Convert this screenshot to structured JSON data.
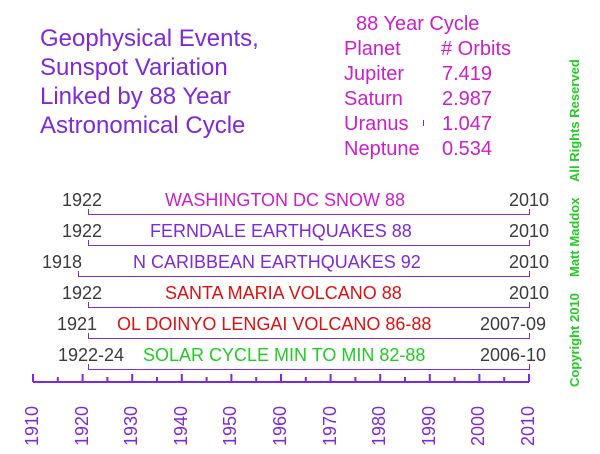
{
  "title": {
    "lines": [
      "Geophysical Events,",
      "Sunspot Variation",
      "Linked by 88 Year",
      "Astronomical Cycle"
    ]
  },
  "cycle_table": {
    "heading": "88 Year Cycle",
    "col_planet": "Planet",
    "col_orbits": "# Orbits",
    "rows": [
      {
        "planet": "Jupiter",
        "orbits": "7.419"
      },
      {
        "planet": "Saturn",
        "orbits": "2.987"
      },
      {
        "planet": "Uranus",
        "orbits": "1.047"
      },
      {
        "planet": "Neptune",
        "orbits": "0.534"
      }
    ]
  },
  "side_text": {
    "rights": "All Rights Reserved",
    "author": "Matt Maddox",
    "copyright": "Copyright 2010"
  },
  "events": [
    {
      "start": "1922",
      "label": "WASHINGTON DC SNOW 88",
      "end": "2010",
      "color": "#cc1fcc",
      "bar_start": 1921,
      "bar_end": 2010
    },
    {
      "start": "1922",
      "label": "FERNDALE EARTHQUAKES 88",
      "end": "2010",
      "color": "#7f2ad8",
      "bar_start": 1921,
      "bar_end": 2010
    },
    {
      "start": "1918",
      "label": "N CARIBBEAN EARTHQUAKES 92",
      "end": "2010",
      "color": "#7f2ad8",
      "bar_start": 1919,
      "bar_end": 2010
    },
    {
      "start": "1922",
      "label": "SANTA MARIA VOLCANO 88",
      "end": "2010",
      "color": "#dd1111",
      "bar_start": 1921,
      "bar_end": 2010
    },
    {
      "start": "1921",
      "label": "OL DOINYO LENGAI VOLCANO 86-88",
      "end": "2007-09",
      "color": "#dd1111",
      "bar_start": 1921,
      "bar_end": 2010
    },
    {
      "start": "1922-24",
      "label": "SOLAR CYCLE MIN TO MIN 82-88",
      "end": "2006-10",
      "color": "#22cc22",
      "bar_start": 1921,
      "bar_end": 2010
    }
  ],
  "axis": {
    "start": 1910,
    "end": 2010,
    "labels": [
      "1910",
      "1920",
      "1930",
      "1940",
      "1950",
      "1960",
      "1970",
      "1980",
      "1990",
      "2000",
      "2010"
    ],
    "color": "#7f2ad8"
  }
}
